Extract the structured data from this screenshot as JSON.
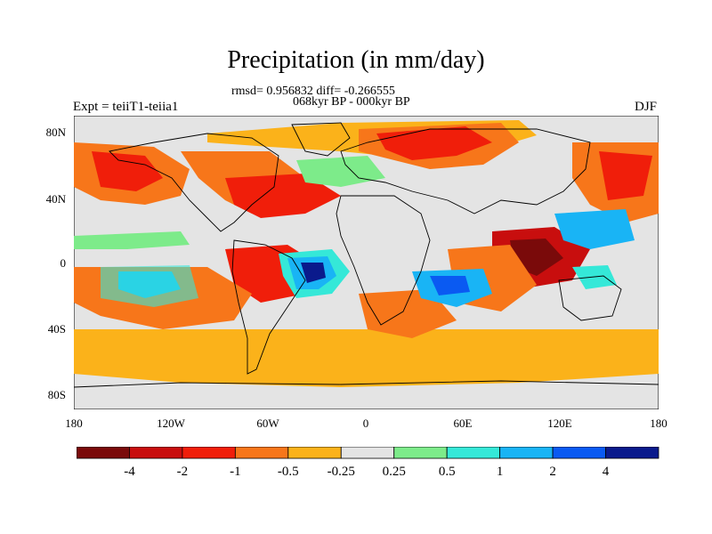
{
  "title": "Precipitation (in mm/day)",
  "subtitle_stats": "rmsd= 0.956832 diff= -0.266555",
  "subtitle_period": "068kyr BP - 000kyr BP",
  "left_label": "Expt = teiiT1-teiia1",
  "right_label": "DJF",
  "y_ticks": [
    "80N",
    "40N",
    "0",
    "40S",
    "80S"
  ],
  "x_ticks": [
    "180",
    "120W",
    "60W",
    "0",
    "60E",
    "120E",
    "180"
  ],
  "colorbar": {
    "labels": [
      "-4",
      "-2",
      "-1",
      "-0.5",
      "-0.25",
      "0.25",
      "0.5",
      "1",
      "2",
      "4"
    ],
    "colors": [
      "#7a0a0a",
      "#c80e0e",
      "#f01e0a",
      "#f7761a",
      "#fbb21a",
      "#e4e4e4",
      "#7deb8a",
      "#35e8d8",
      "#19b4f5",
      "#0a5af2",
      "#0a1a8c"
    ]
  },
  "map_colors": {
    "neutral": "#e4e4e4",
    "ocean_border": "#000000"
  }
}
